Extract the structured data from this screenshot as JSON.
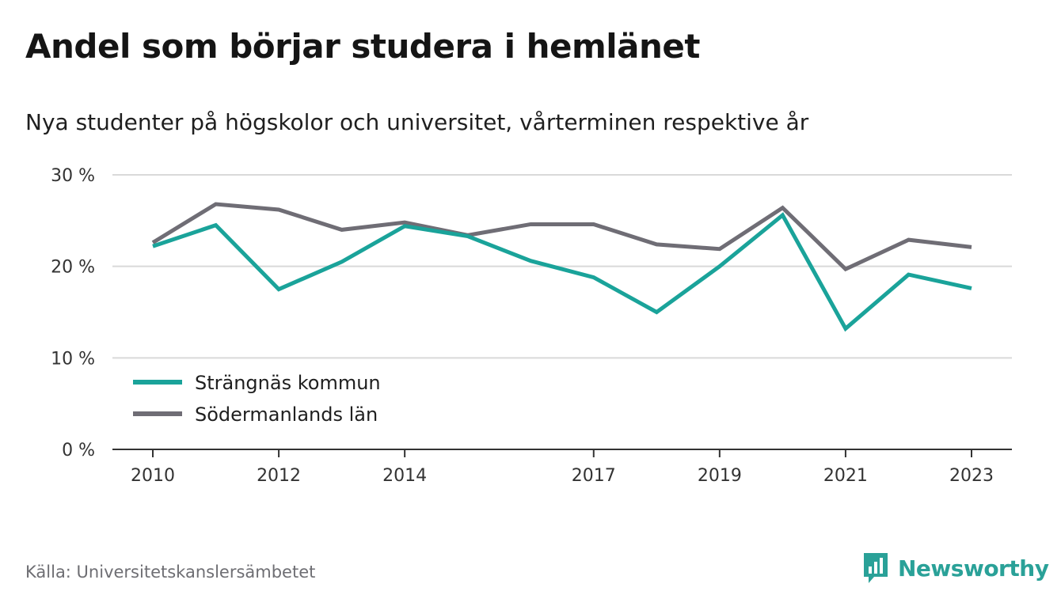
{
  "title": "Andel som börjar studera i hemlänet",
  "subtitle": "Nya studenter på högskolor och universitet, vårterminen respektive år",
  "source": "Källa: Universitetskanslersämbetet",
  "brand": {
    "name": "Newsworthy",
    "icon": "newsworthy-logo-icon"
  },
  "colors": {
    "strangnas": "#1aa39a",
    "sodermanland": "#6f6d75",
    "grid": "#d9d9d9",
    "axis": "#333333"
  },
  "chart_data": {
    "type": "line",
    "title": "Andel som börjar studera i hemlänet",
    "subtitle": "Nya studenter på högskolor och universitet, vårterminen respektive år",
    "x": [
      2010,
      2011,
      2012,
      2013,
      2014,
      2015,
      2016,
      2017,
      2018,
      2019,
      2020,
      2021,
      2022,
      2023
    ],
    "x_tick_labels": [
      "2010",
      "2012",
      "2014",
      "2017",
      "2019",
      "2021",
      "2023"
    ],
    "y_ticks": [
      0,
      10,
      20,
      30
    ],
    "y_tick_labels": [
      "0 %",
      "10 %",
      "20 %",
      "30 %"
    ],
    "ylim": [
      0,
      30
    ],
    "grid": true,
    "legend_position": "bottom-left",
    "series": [
      {
        "name": "Strängnäs kommun",
        "color": "#1aa39a",
        "values": [
          22.2,
          24.5,
          17.5,
          20.5,
          24.4,
          23.3,
          20.6,
          18.8,
          15.0,
          20.0,
          25.6,
          13.2,
          19.1,
          17.6
        ]
      },
      {
        "name": "Södermanlands län",
        "color": "#6f6d75",
        "values": [
          22.6,
          26.8,
          26.2,
          24.0,
          24.8,
          23.4,
          24.6,
          24.6,
          22.4,
          21.9,
          26.4,
          19.7,
          22.9,
          22.1
        ]
      }
    ]
  }
}
